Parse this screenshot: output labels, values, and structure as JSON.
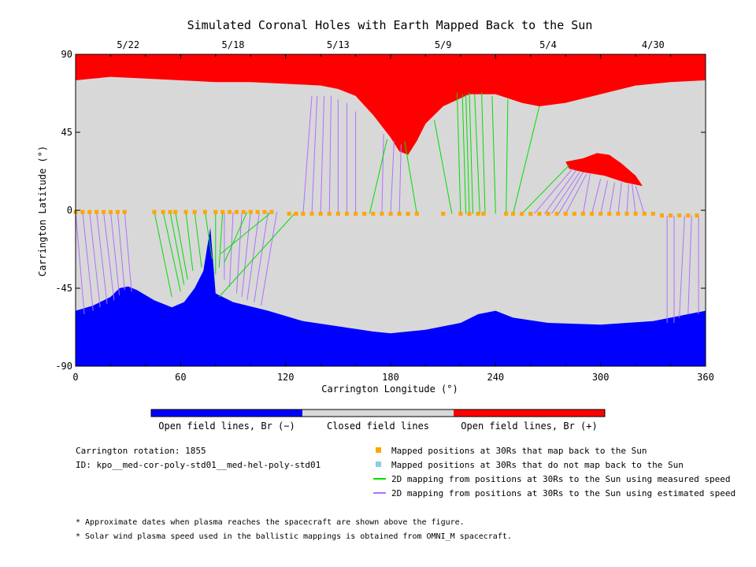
{
  "chart_data": {
    "type": "map",
    "title": "Simulated Coronal Holes with Earth Mapped Back to the Sun",
    "xlabel": "Carrington Longitude (°)",
    "ylabel": "Carrington Latitude (°)",
    "xlim": [
      0,
      360
    ],
    "ylim": [
      -90,
      90
    ],
    "x_ticks": [
      "0",
      "60",
      "120",
      "180",
      "240",
      "300",
      "360"
    ],
    "x_tick_values": [
      0,
      60,
      120,
      180,
      240,
      300,
      360
    ],
    "y_ticks": [
      "90",
      "45",
      "0",
      "-45",
      "-90"
    ],
    "y_tick_values": [
      90,
      45,
      0,
      -45,
      -90
    ],
    "top_dates": [
      {
        "label": "5/22",
        "lon": 30
      },
      {
        "label": "5/18",
        "lon": 90
      },
      {
        "label": "5/13",
        "lon": 150
      },
      {
        "label": "5/9",
        "lon": 210
      },
      {
        "label": "5/4",
        "lon": 270
      },
      {
        "label": "4/30",
        "lon": 330
      }
    ],
    "colors": {
      "open_negative": "#0000ff",
      "closed": "#d8d8d8",
      "open_positive": "#ff0000",
      "mapped_point": "#ffa500",
      "unmapped_point": "#87ceeb",
      "measured_line": "#00dd00",
      "estimated_line": "#b070ff"
    },
    "colorbar": [
      {
        "label": "Open field lines, Br (−)",
        "color": "#0000ff"
      },
      {
        "label": "Closed field lines",
        "color": "#d8d8d8"
      },
      {
        "label": "Open field lines, Br (+)",
        "color": "#ff0000"
      }
    ],
    "north_hole_boundary": [
      [
        0,
        75
      ],
      [
        10,
        76
      ],
      [
        20,
        77
      ],
      [
        40,
        76
      ],
      [
        60,
        75
      ],
      [
        80,
        74
      ],
      [
        100,
        74
      ],
      [
        120,
        73
      ],
      [
        140,
        72
      ],
      [
        150,
        70
      ],
      [
        160,
        66
      ],
      [
        170,
        55
      ],
      [
        180,
        42
      ],
      [
        185,
        34
      ],
      [
        190,
        32
      ],
      [
        195,
        40
      ],
      [
        200,
        50
      ],
      [
        210,
        60
      ],
      [
        225,
        67
      ],
      [
        240,
        67
      ],
      [
        255,
        62
      ],
      [
        265,
        60
      ],
      [
        280,
        62
      ],
      [
        300,
        67
      ],
      [
        320,
        72
      ],
      [
        340,
        74
      ],
      [
        360,
        75
      ]
    ],
    "south_hole_boundary": [
      [
        0,
        -58
      ],
      [
        10,
        -55
      ],
      [
        20,
        -50
      ],
      [
        25,
        -45
      ],
      [
        30,
        -44
      ],
      [
        35,
        -46
      ],
      [
        45,
        -52
      ],
      [
        55,
        -56
      ],
      [
        62,
        -53
      ],
      [
        68,
        -45
      ],
      [
        73,
        -35
      ],
      [
        77,
        -10
      ],
      [
        79,
        -35
      ],
      [
        80,
        -48
      ],
      [
        90,
        -53
      ],
      [
        110,
        -58
      ],
      [
        130,
        -64
      ],
      [
        150,
        -67
      ],
      [
        170,
        -70
      ],
      [
        180,
        -71
      ],
      [
        200,
        -69
      ],
      [
        220,
        -65
      ],
      [
        230,
        -60
      ],
      [
        240,
        -58
      ],
      [
        250,
        -62
      ],
      [
        270,
        -65
      ],
      [
        300,
        -66
      ],
      [
        330,
        -64
      ],
      [
        360,
        -58
      ]
    ],
    "positive_island_boundary": [
      [
        280,
        28
      ],
      [
        290,
        30
      ],
      [
        298,
        33
      ],
      [
        305,
        32
      ],
      [
        312,
        27
      ],
      [
        320,
        20
      ],
      [
        324,
        14
      ],
      [
        314,
        16
      ],
      [
        302,
        20
      ],
      [
        290,
        22
      ],
      [
        282,
        24
      ]
    ],
    "mapped_points": [
      [
        0,
        -1
      ],
      [
        4,
        -1
      ],
      [
        8,
        -1
      ],
      [
        12,
        -1
      ],
      [
        16,
        -1
      ],
      [
        20,
        -1
      ],
      [
        24,
        -1
      ],
      [
        28,
        -1
      ],
      [
        45,
        -1
      ],
      [
        50,
        -1
      ],
      [
        54,
        -1
      ],
      [
        57,
        -1
      ],
      [
        63,
        -1
      ],
      [
        68,
        -1
      ],
      [
        74,
        -1
      ],
      [
        80,
        -1
      ],
      [
        84,
        -1
      ],
      [
        88,
        -1
      ],
      [
        92,
        -1
      ],
      [
        96,
        -1
      ],
      [
        100,
        -1
      ],
      [
        104,
        -1
      ],
      [
        108,
        -1
      ],
      [
        112,
        -1
      ],
      [
        122,
        -2
      ],
      [
        126,
        -2
      ],
      [
        130,
        -2
      ],
      [
        135,
        -2
      ],
      [
        140,
        -2
      ],
      [
        145,
        -2
      ],
      [
        150,
        -2
      ],
      [
        155,
        -2
      ],
      [
        160,
        -2
      ],
      [
        165,
        -2
      ],
      [
        170,
        -2
      ],
      [
        175,
        -2
      ],
      [
        180,
        -2
      ],
      [
        185,
        -2
      ],
      [
        190,
        -2
      ],
      [
        195,
        -2
      ],
      [
        210,
        -2
      ],
      [
        220,
        -2
      ],
      [
        225,
        -2
      ],
      [
        230,
        -2
      ],
      [
        233,
        -2
      ],
      [
        246,
        -2
      ],
      [
        250,
        -2
      ],
      [
        255,
        -2
      ],
      [
        260,
        -2
      ],
      [
        265,
        -2
      ],
      [
        270,
        -2
      ],
      [
        275,
        -2
      ],
      [
        280,
        -2
      ],
      [
        285,
        -2
      ],
      [
        290,
        -2
      ],
      [
        295,
        -2
      ],
      [
        300,
        -2
      ],
      [
        305,
        -2
      ],
      [
        310,
        -2
      ],
      [
        315,
        -2
      ],
      [
        320,
        -2
      ],
      [
        325,
        -2
      ],
      [
        330,
        -2
      ],
      [
        335,
        -3
      ],
      [
        340,
        -3
      ],
      [
        345,
        -3
      ],
      [
        350,
        -3
      ],
      [
        355,
        -3
      ]
    ],
    "measured_lines": [
      [
        45,
        -1,
        55,
        -50
      ],
      [
        50,
        -1,
        60,
        -47
      ],
      [
        54,
        -1,
        62,
        -43
      ],
      [
        57,
        -1,
        64,
        -40
      ],
      [
        63,
        -1,
        67,
        -35
      ],
      [
        68,
        -1,
        72,
        -33
      ],
      [
        74,
        -1,
        78,
        -28
      ],
      [
        80,
        -1,
        80,
        -37
      ],
      [
        84,
        -1,
        82,
        -33
      ],
      [
        98,
        -1,
        85,
        -30
      ],
      [
        112,
        -1,
        83,
        -25
      ],
      [
        125,
        -2,
        82,
        -50
      ],
      [
        168,
        -2,
        178,
        41
      ],
      [
        195,
        -2,
        188,
        40
      ],
      [
        215,
        -2,
        205,
        52
      ],
      [
        220,
        -2,
        218,
        68
      ],
      [
        223,
        -2,
        221,
        67
      ],
      [
        225,
        -2,
        223,
        67
      ],
      [
        227,
        -2,
        225,
        68
      ],
      [
        231,
        -2,
        228,
        67
      ],
      [
        234,
        -2,
        232,
        68
      ],
      [
        240,
        -2,
        238,
        66
      ],
      [
        246,
        -2,
        247,
        64
      ],
      [
        250,
        -2,
        265,
        60
      ],
      [
        255,
        -2,
        282,
        26
      ]
    ],
    "estimated_lines": [
      [
        0,
        -1,
        5,
        -60
      ],
      [
        4,
        -1,
        10,
        -58
      ],
      [
        8,
        -1,
        14,
        -56
      ],
      [
        12,
        -1,
        18,
        -54
      ],
      [
        16,
        -1,
        22,
        -52
      ],
      [
        20,
        -1,
        25,
        -49
      ],
      [
        24,
        -1,
        28,
        -46
      ],
      [
        28,
        -1,
        32,
        -47
      ],
      [
        85,
        -1,
        85,
        -40
      ],
      [
        90,
        -1,
        88,
        -44
      ],
      [
        95,
        -1,
        92,
        -48
      ],
      [
        100,
        -1,
        95,
        -50
      ],
      [
        105,
        -1,
        98,
        -52
      ],
      [
        110,
        -1,
        102,
        -53
      ],
      [
        115,
        -1,
        106,
        -55
      ],
      [
        130,
        -2,
        135,
        66
      ],
      [
        135,
        -2,
        138,
        66
      ],
      [
        140,
        -2,
        142,
        66
      ],
      [
        145,
        -2,
        146,
        66
      ],
      [
        150,
        -2,
        150,
        64
      ],
      [
        155,
        -2,
        155,
        62
      ],
      [
        160,
        -2,
        160,
        57
      ],
      [
        175,
        -2,
        176,
        44
      ],
      [
        180,
        -2,
        182,
        40
      ],
      [
        185,
        -2,
        186,
        38
      ],
      [
        262,
        -2,
        284,
        24
      ],
      [
        268,
        -2,
        286,
        23
      ],
      [
        272,
        -2,
        288,
        22
      ],
      [
        276,
        -2,
        290,
        22
      ],
      [
        280,
        -2,
        292,
        21
      ],
      [
        290,
        -2,
        294,
        21
      ],
      [
        295,
        -2,
        300,
        18
      ],
      [
        300,
        -2,
        304,
        17
      ],
      [
        305,
        -2,
        308,
        16
      ],
      [
        310,
        -2,
        312,
        16
      ],
      [
        315,
        -2,
        316,
        15
      ],
      [
        320,
        -2,
        318,
        15
      ],
      [
        325,
        -2,
        320,
        14
      ],
      [
        338,
        -3,
        338,
        -65
      ],
      [
        342,
        -3,
        342,
        -65
      ],
      [
        348,
        -3,
        345,
        -62
      ],
      [
        352,
        -3,
        350,
        -60
      ],
      [
        356,
        -3,
        356,
        -60
      ]
    ]
  },
  "info": {
    "rotation": "Carrington rotation: 1855",
    "id": "ID: kpo__med-cor-poly-std01__med-hel-poly-std01"
  },
  "legend": {
    "mapped": "Mapped positions at 30Rs that map back to the Sun",
    "unmapped": "Mapped positions at 30Rs that do not map back to the Sun",
    "measured": "2D mapping from positions at 30Rs to the Sun using measured speed",
    "estimated": "2D mapping from positions at 30Rs to the Sun using estimated speed"
  },
  "notes": {
    "note1": "* Approximate dates when plasma reaches the spacecraft are shown above the figure.",
    "note2": "* Solar wind plasma speed used in the ballistic mappings is obtained from OMNI_M spacecraft."
  }
}
